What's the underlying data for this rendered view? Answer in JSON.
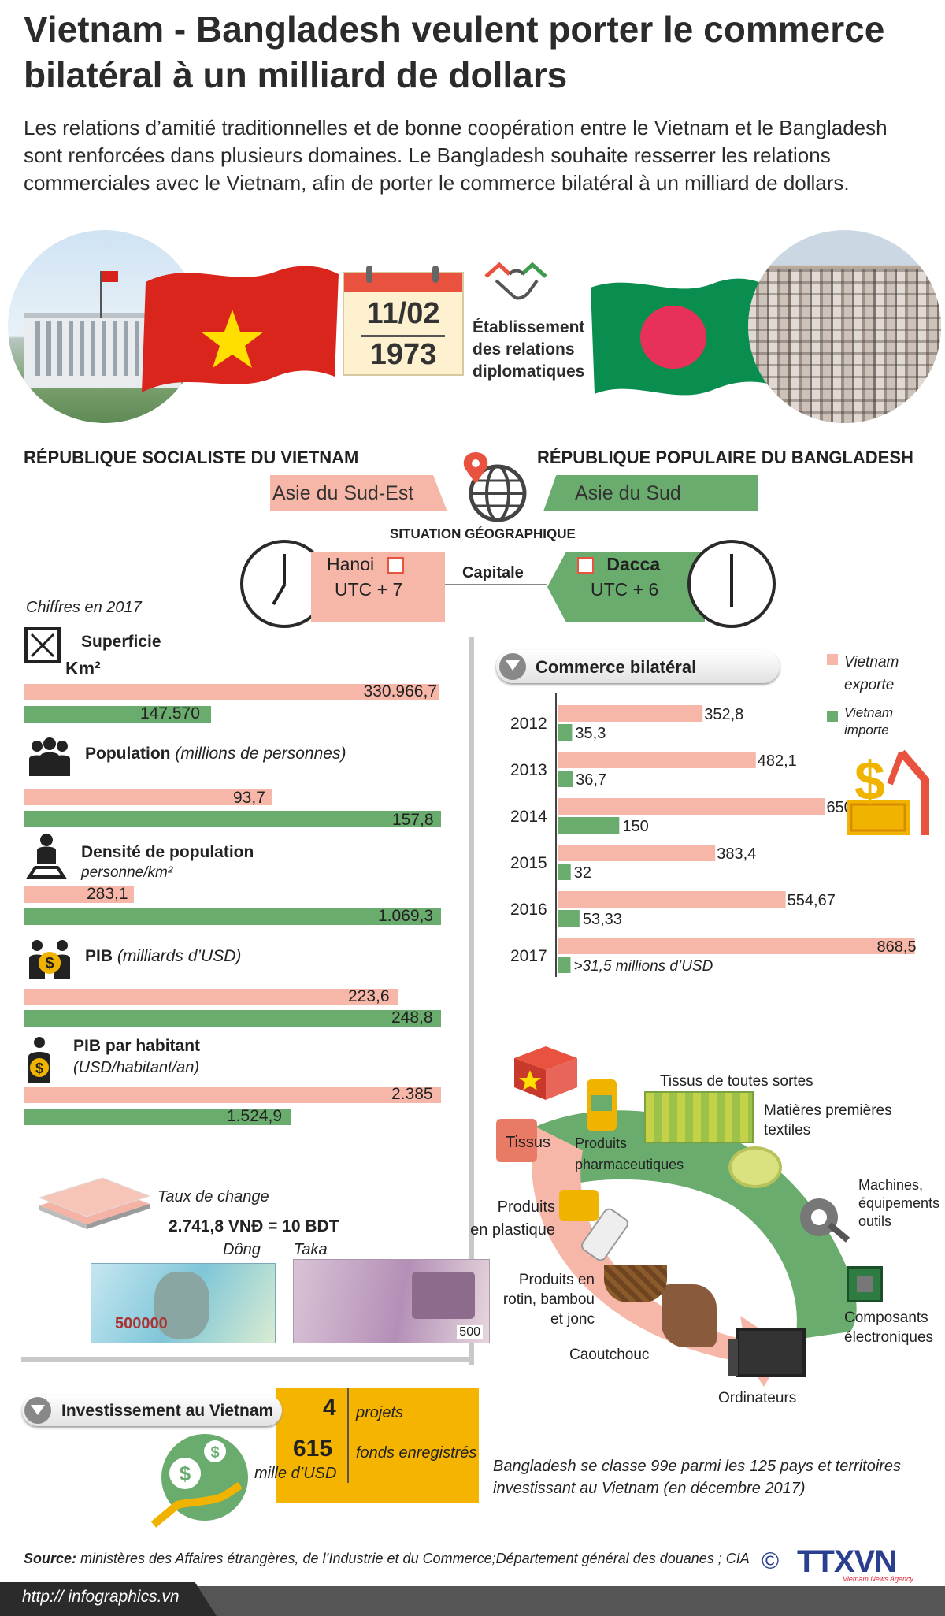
{
  "title": "Vietnam - Bangladesh veulent porter le commerce bilatéral à un milliard de dollars",
  "intro": "Les relations d’amitié traditionnelles et de bonne coopération entre le Vietnam et le Bangladesh sont renforcées dans plusieurs domaines. Le Bangladesh souhaite resserrer les relations commerciales avec le Vietnam, afin de porter le commerce bilatéral à un milliard de dollars.",
  "date": {
    "day": "11/02",
    "year": "1973",
    "label_l1": "Établissement",
    "label_l2": "des relations",
    "label_l3": "diplomatiques"
  },
  "vietnam": {
    "name": "RÉPUBLIQUE SOCIALISTE DU VIETNAM",
    "region": "Asie du Sud-Est",
    "capital": "Hanoi",
    "utc": "UTC + 7"
  },
  "bangladesh": {
    "name": "RÉPUBLIQUE POPULAIRE DU BANGLADESH",
    "region": "Asie du Sud",
    "capital": "Dacca",
    "utc": "UTC + 6"
  },
  "geo_label": "SITUATION GÉOGRAPHIQUE",
  "capital_label": "Capitale",
  "stats": {
    "year_note": "Chiffres en 2017",
    "superficie": {
      "label": "Superficie",
      "unit": "Km²",
      "vn": "330.966,7",
      "bd": "147.570",
      "vn_val": 330966.7,
      "bd_val": 147570
    },
    "population": {
      "label": "Population",
      "unit": "(millions de personnes)",
      "vn": "93,7",
      "bd": "157,8",
      "vn_val": 93.7,
      "bd_val": 157.8
    },
    "densite": {
      "label": "Densité de population",
      "unit": "personne/km²",
      "vn": "283,1",
      "bd": "1.069,3",
      "vn_val": 283.1,
      "bd_val": 1069.3
    },
    "pib": {
      "label": "PIB",
      "unit": "(milliards d’USD)",
      "vn": "223,6",
      "bd": "248,8",
      "vn_val": 223.6,
      "bd_val": 248.8
    },
    "pib_hab": {
      "label": "PIB par habitant",
      "unit": "(USD/habitant/an)",
      "vn": "2.385",
      "bd": "1.524,9",
      "vn_val": 2385,
      "bd_val": 1524.9
    }
  },
  "exchange": {
    "label": "Taux de change",
    "rate": "2.741,8 VNĐ = 10 BDT",
    "dong": "Dông",
    "taka": "Taka",
    "vn_note": "500000",
    "bd_note": "500"
  },
  "trade": {
    "title": "Commerce bilatéral",
    "legend_export_l1": "Vietnam",
    "legend_export_l2": "exporte",
    "legend_import_l1": "Vietnam",
    "legend_import_l2": "importe",
    "note_2017": ">31,5 millions d’USD",
    "colors": {
      "export": "#f7b7a8",
      "import": "#6aab6e"
    }
  },
  "chart_data": {
    "type": "bar",
    "title": "Commerce bilatéral",
    "categories": [
      "2012",
      "2013",
      "2014",
      "2015",
      "2016",
      "2017"
    ],
    "series": [
      {
        "name": "Vietnam exporte",
        "values": [
          352.8,
          482.1,
          650,
          383.4,
          554.67,
          868.5
        ]
      },
      {
        "name": "Vietnam importe",
        "values": [
          35.3,
          36.7,
          150,
          32,
          53.33,
          31.5
        ]
      }
    ],
    "value_labels": {
      "exporte": [
        "352,8",
        "482,1",
        "650",
        "383,4",
        "554,67",
        "868,5"
      ],
      "importe": [
        "35,3",
        "36,7",
        "150",
        "32",
        "53,33",
        ">31,5 millions d’USD"
      ]
    }
  },
  "products": {
    "tissus_sortes": "Tissus de toutes sortes",
    "matieres_l1": "Matières premières",
    "matieres_l2": "textiles",
    "machines_l1": "Machines,",
    "machines_l2": "équipements",
    "machines_l3": "outils",
    "composants_l1": "Composants",
    "composants_l2": "électroniques",
    "ordinateurs": "Ordinateurs",
    "caoutchouc": "Caoutchouc",
    "rotin_l1": "Produits en",
    "rotin_l2": "rotin, bambou",
    "rotin_l3": "et jonc",
    "plastique_l1": "Produits",
    "plastique_l2": "en plastique",
    "tissus": "Tissus",
    "pharma_l1": "Produits",
    "pharma_l2": "pharmaceutiques"
  },
  "investment": {
    "title": "Investissement au Vietnam",
    "projects_num": "4",
    "projects_label": "projets",
    "funds_num": "615",
    "funds_unit": "mille d’USD",
    "funds_label": "fonds enregistrés",
    "rank_l1": "Bangladesh  se classe 99e parmi les 125 pays et territoires",
    "rank_l2": "investissant au Vietnam (en décembre 2017)"
  },
  "source": {
    "prefix": "Source:",
    "text": " ministères des Affaires étrangères, de l’Industrie et du Commerce;Département général des douanes ; CIA"
  },
  "url": "http:// infographics.vn",
  "brand": {
    "copyright": "©",
    "name": "TTXVN",
    "sub": "Vietnam News Agency"
  }
}
